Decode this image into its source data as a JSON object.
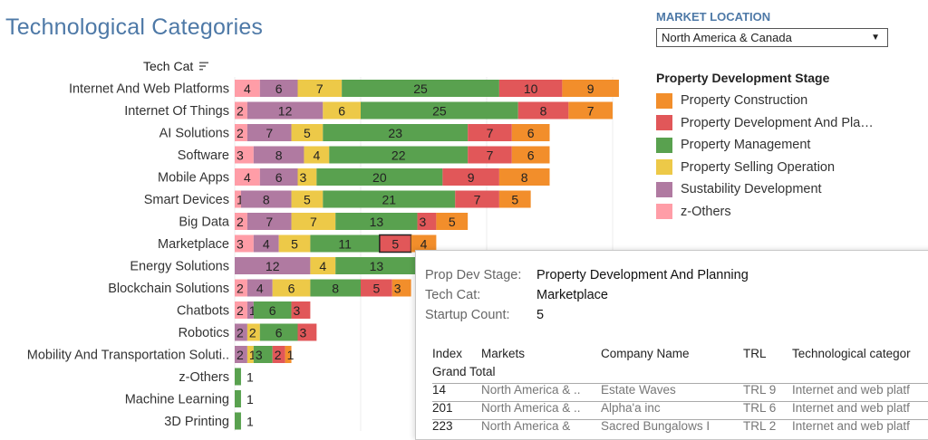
{
  "page": {
    "title": "Technological Categories"
  },
  "axis_header": {
    "label": "Tech Cat"
  },
  "filter": {
    "heading": "MARKET LOCATION",
    "selected": "North America & Canada"
  },
  "legend": {
    "heading": "Property Development Stage",
    "items": [
      {
        "label": "Property Construction",
        "color": "#f28e2b"
      },
      {
        "label": "Property Development And Pla…",
        "color": "#e15759"
      },
      {
        "label": "Property Management",
        "color": "#59a14f"
      },
      {
        "label": "Property Selling Operation",
        "color": "#edc948"
      },
      {
        "label": "Sustability Development",
        "color": "#b07aa1"
      },
      {
        "label": "z-Others",
        "color": "#ff9da7"
      }
    ]
  },
  "chart_data": {
    "type": "bar",
    "orientation": "horizontal-stacked",
    "stack_order": [
      "z-Others",
      "Sustability Development",
      "Property Selling Operation",
      "Property Management",
      "Property Development And Planning",
      "Property Construction"
    ],
    "colors": {
      "z-Others": "#ff9da7",
      "Sustability Development": "#b07aa1",
      "Property Selling Operation": "#edc948",
      "Property Management": "#59a14f",
      "Property Development And Planning": "#e15759",
      "Property Construction": "#f28e2b"
    },
    "categories": [
      "Internet And Web Platforms",
      "Internet Of Things",
      "AI Solutions",
      "Software",
      "Mobile Apps",
      "Smart Devices",
      "Big Data",
      "Marketplace",
      "Energy Solutions",
      "Blockchain Solutions",
      "Chatbots",
      "Robotics",
      "Mobility And Transportation Soluti..",
      "z-Others",
      "Machine Learning",
      "3D Printing"
    ],
    "series": [
      {
        "name": "z-Others",
        "values": [
          4,
          2,
          2,
          3,
          4,
          1,
          2,
          3,
          0,
          2,
          2,
          0,
          0,
          0,
          0,
          0
        ]
      },
      {
        "name": "Sustability Development",
        "values": [
          6,
          12,
          7,
          8,
          6,
          8,
          7,
          4,
          12,
          4,
          1,
          2,
          2,
          0,
          0,
          0
        ]
      },
      {
        "name": "Property Selling Operation",
        "values": [
          7,
          6,
          5,
          4,
          3,
          5,
          7,
          5,
          4,
          6,
          0,
          2,
          1,
          0,
          0,
          0
        ]
      },
      {
        "name": "Property Management",
        "values": [
          25,
          25,
          23,
          22,
          20,
          21,
          13,
          11,
          13,
          8,
          6,
          6,
          3,
          1,
          1,
          1
        ]
      },
      {
        "name": "Property Development And Planning",
        "values": [
          10,
          8,
          7,
          7,
          9,
          7,
          3,
          5,
          0,
          5,
          3,
          3,
          2,
          0,
          0,
          0
        ]
      },
      {
        "name": "Property Construction",
        "values": [
          9,
          7,
          6,
          6,
          8,
          5,
          5,
          4,
          0,
          3,
          0,
          0,
          1,
          0,
          0,
          0
        ]
      }
    ],
    "highlighted": {
      "category": "Marketplace",
      "series": "Property Development And Planning"
    },
    "grid": true,
    "legend_position": "right"
  },
  "tooltip": {
    "fields": [
      {
        "key": "Prop Dev Stage:",
        "value": "Property Development And Planning"
      },
      {
        "key": "Tech Cat:",
        "value": "Marketplace"
      },
      {
        "key": "Startup Count:",
        "value": "5"
      }
    ],
    "table": {
      "columns": [
        "Index",
        "Markets",
        "Company Name",
        "TRL",
        "Technological categor"
      ],
      "grand_total": "Grand Total",
      "rows": [
        [
          "14",
          "North America & ..",
          "Estate Waves",
          "TRL 9",
          "Internet and web platf"
        ],
        [
          "201",
          "North America & ..",
          "Alpha'a inc",
          "TRL 6",
          "Internet and web platf"
        ],
        [
          "223",
          "North America &",
          "Sacred Bungalows I",
          "TRL 2",
          "Internet and web platf"
        ]
      ]
    }
  }
}
